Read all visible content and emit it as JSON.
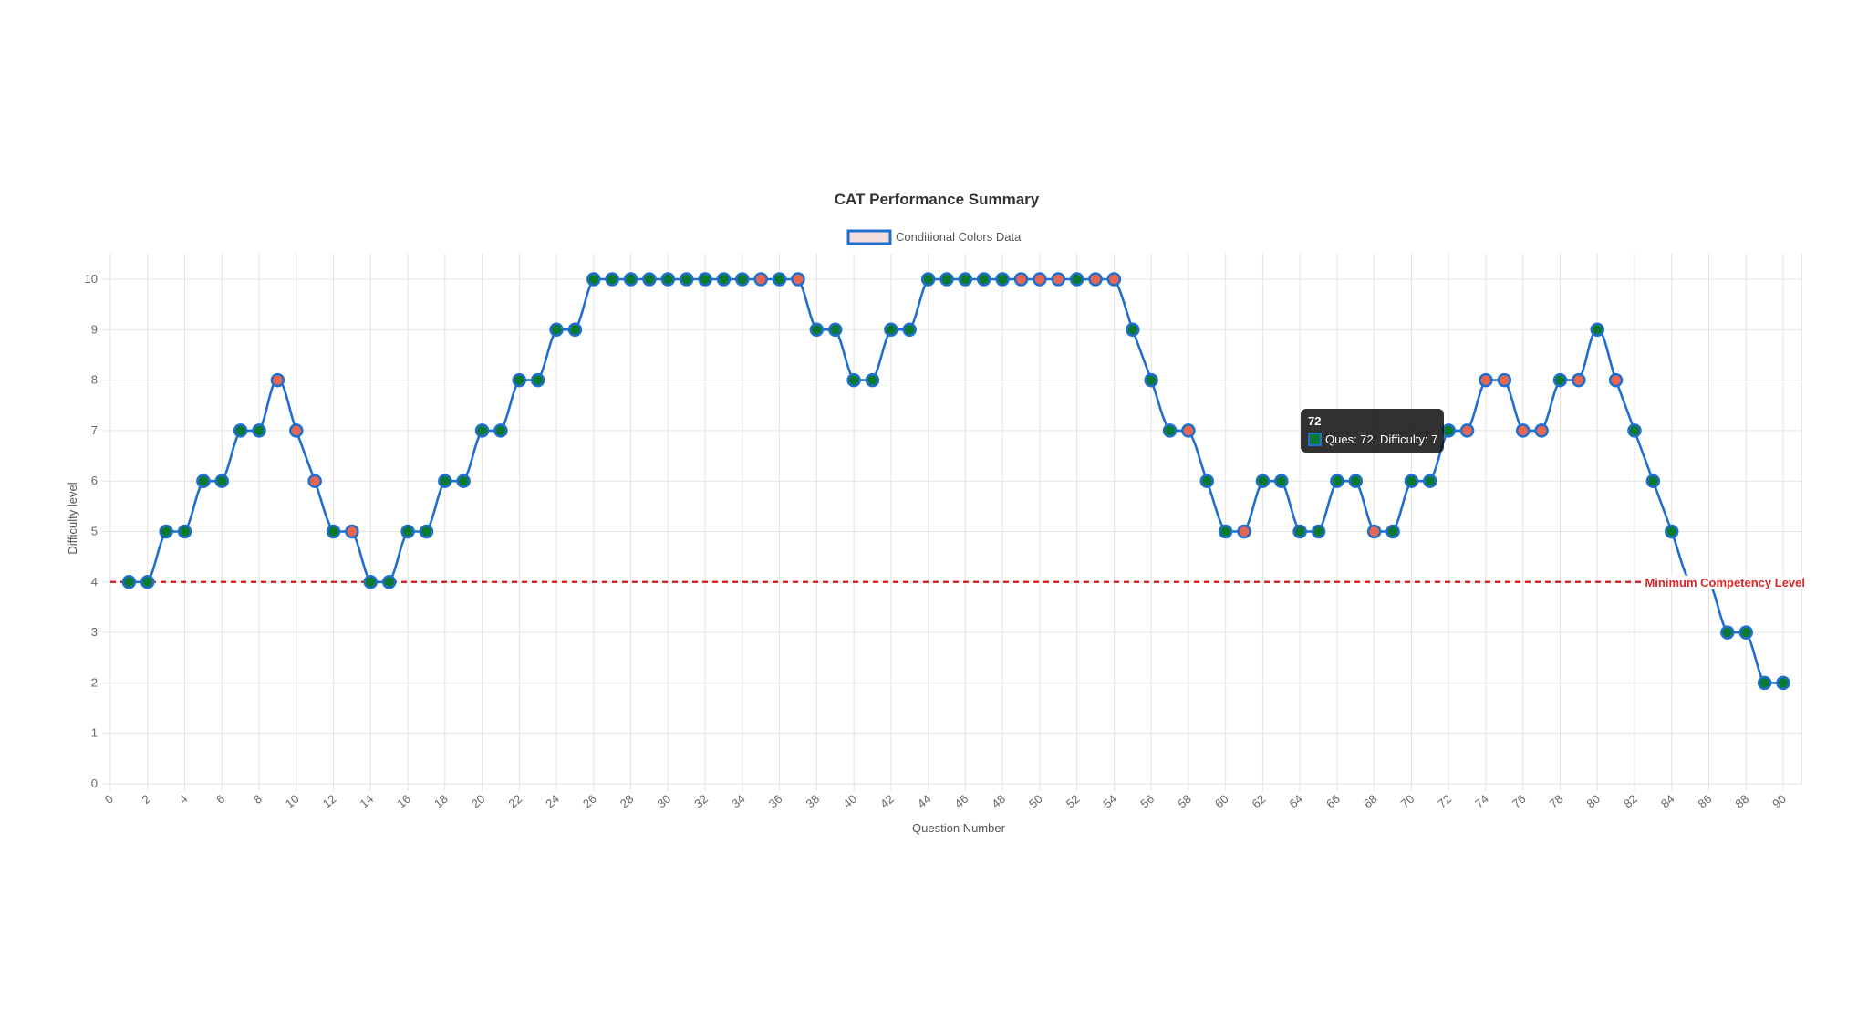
{
  "chart_data": {
    "type": "line",
    "title": "CAT Performance Summary",
    "legend": {
      "label": "Conditional Colors Data",
      "position": "top"
    },
    "xlabel": "Question Number",
    "ylabel": "Difficulty level",
    "xlim": [
      0,
      91
    ],
    "ylim": [
      0,
      10.5
    ],
    "xticks": [
      0,
      2,
      4,
      6,
      8,
      10,
      12,
      14,
      16,
      18,
      20,
      22,
      24,
      26,
      28,
      30,
      32,
      34,
      36,
      38,
      40,
      42,
      44,
      46,
      48,
      50,
      52,
      54,
      56,
      58,
      60,
      62,
      64,
      66,
      68,
      70,
      72,
      74,
      76,
      78,
      80,
      82,
      84,
      86,
      88,
      90
    ],
    "yticks": [
      0,
      1,
      2,
      3,
      4,
      5,
      6,
      7,
      8,
      9,
      10
    ],
    "grid": true,
    "x": [
      1,
      2,
      3,
      4,
      5,
      6,
      7,
      8,
      9,
      10,
      11,
      12,
      13,
      14,
      15,
      16,
      17,
      18,
      19,
      20,
      21,
      22,
      23,
      24,
      25,
      26,
      27,
      28,
      29,
      30,
      31,
      32,
      33,
      34,
      35,
      36,
      37,
      38,
      39,
      40,
      41,
      42,
      43,
      44,
      45,
      46,
      47,
      48,
      49,
      50,
      51,
      52,
      53,
      54,
      55,
      56,
      57,
      58,
      59,
      60,
      61,
      62,
      63,
      64,
      65,
      66,
      67,
      68,
      69,
      70,
      71,
      72,
      73,
      74,
      75,
      76,
      77,
      78,
      79,
      80,
      81,
      82,
      83,
      84,
      85,
      86,
      87,
      88,
      89,
      90
    ],
    "values": [
      4,
      4,
      5,
      5,
      6,
      6,
      7,
      7,
      8,
      7,
      6,
      5,
      5,
      4,
      4,
      5,
      5,
      6,
      6,
      7,
      7,
      8,
      8,
      9,
      9,
      10,
      10,
      10,
      10,
      10,
      10,
      10,
      10,
      10,
      10,
      10,
      10,
      9,
      9,
      8,
      8,
      9,
      9,
      10,
      10,
      10,
      10,
      10,
      10,
      10,
      10,
      10,
      10,
      10,
      9,
      8,
      7,
      7,
      6,
      5,
      5,
      6,
      6,
      5,
      5,
      6,
      6,
      5,
      5,
      6,
      6,
      7,
      7,
      8,
      8,
      7,
      7,
      8,
      8,
      9,
      8,
      7,
      6,
      5,
      4,
      4,
      3,
      3,
      2,
      2
    ],
    "point_status": "gggggggg rrrgrgggggggggggggggggggggr gr gggggggggggr rrgrr gggrggrggggggrggggr rrrrgr grgg",
    "colors": {
      "line": "#1f6fd0",
      "correct": "#0b7a2e",
      "wrong": "#e8664f",
      "threshold": "#d62828",
      "legend_fill": "#f3dede"
    },
    "threshold": {
      "value": 4,
      "label": "Minimum Competency Level"
    },
    "tooltip": {
      "title": "72",
      "body": "Ques: 72, Difficulty: 7"
    }
  }
}
